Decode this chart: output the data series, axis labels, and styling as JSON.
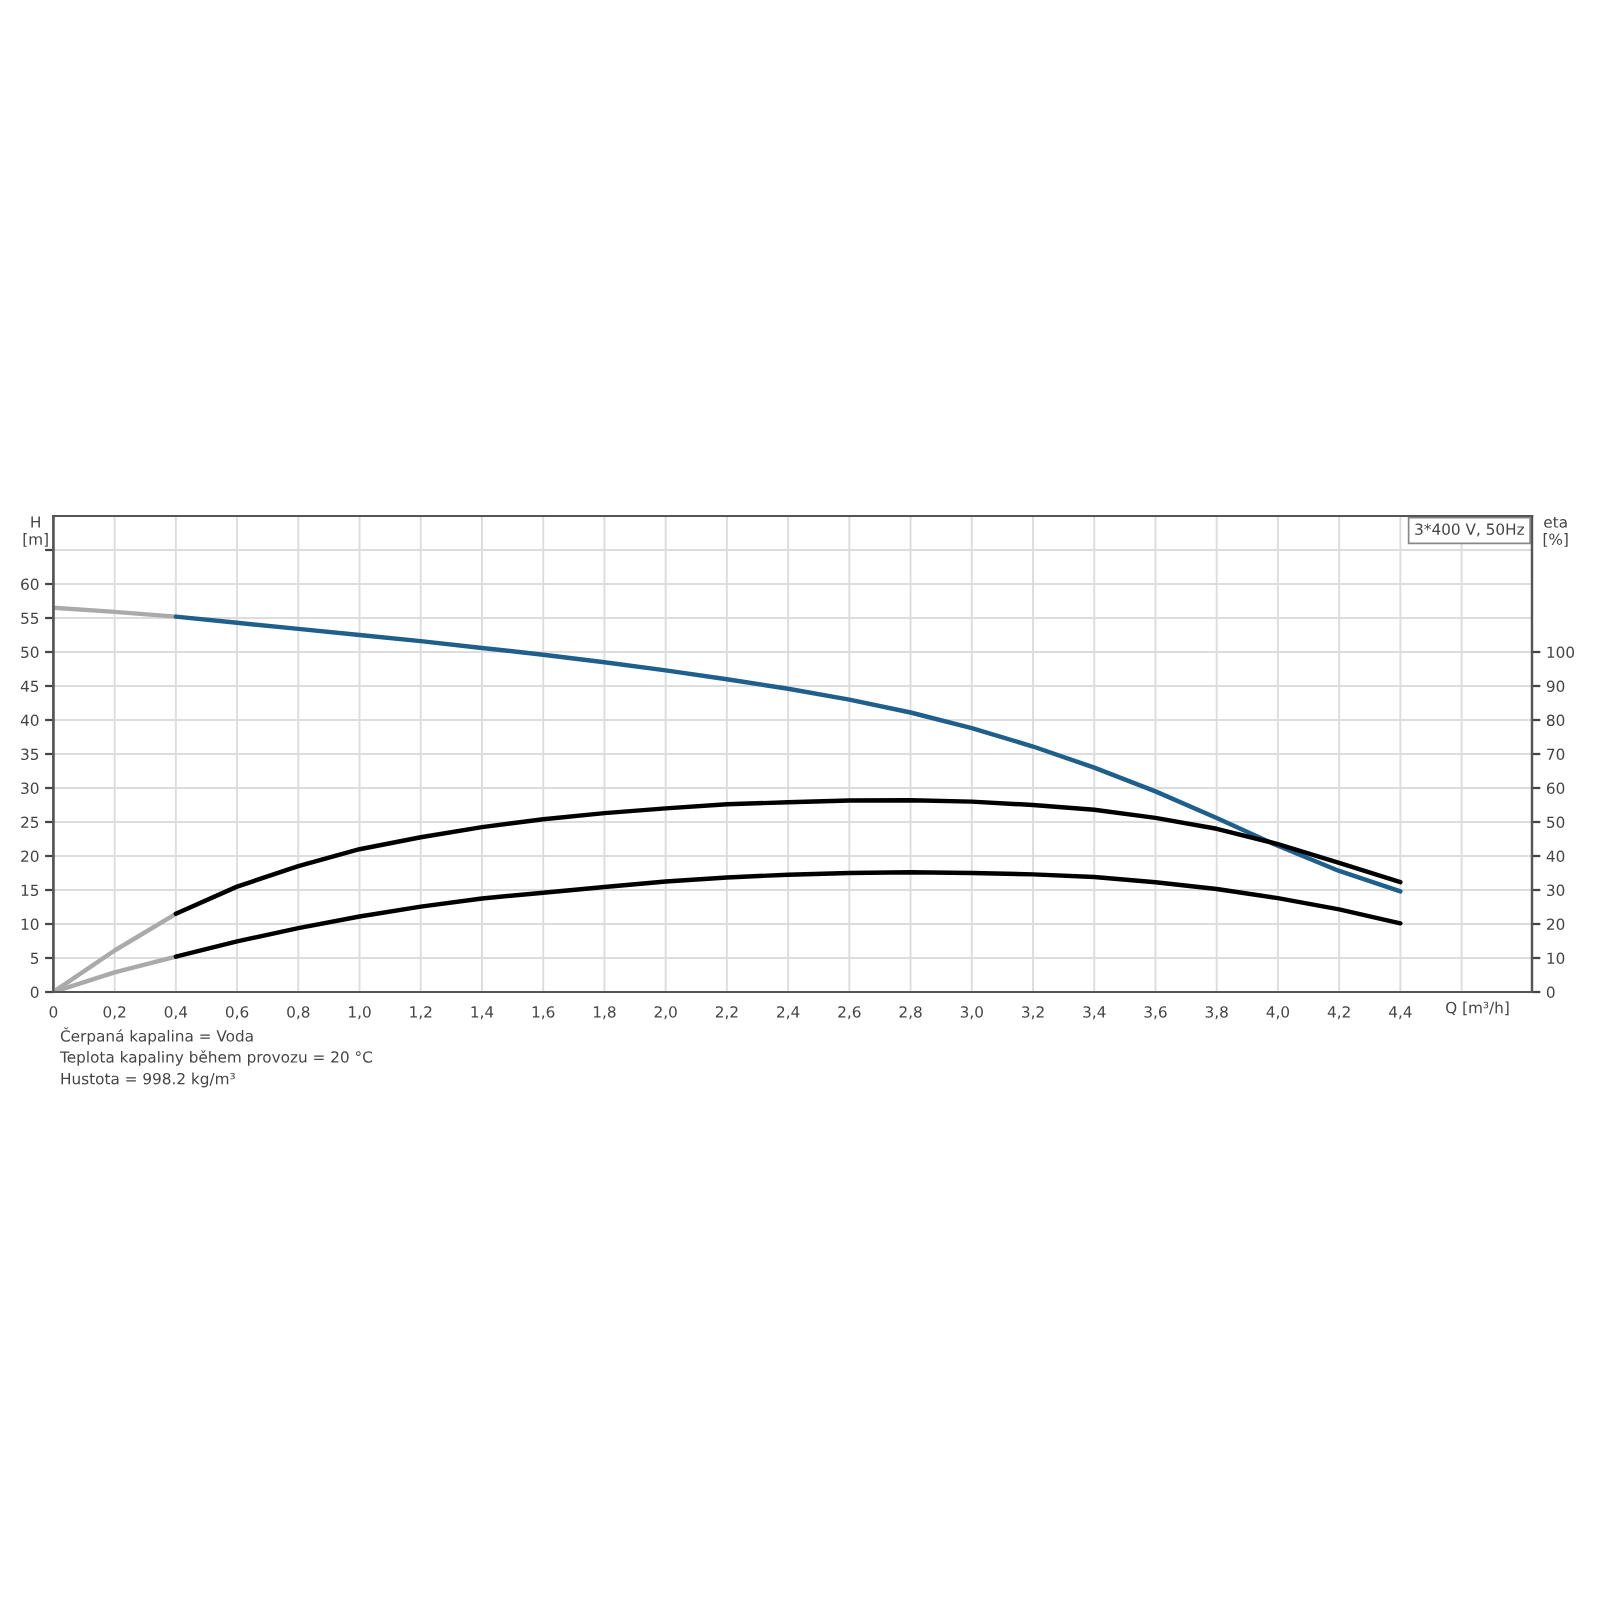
{
  "chart_data": {
    "type": "line",
    "ylabel": "H\n[m]",
    "y2label": "eta\n[%]",
    "xlabel": "Q [m³/h]",
    "xlim": [
      0,
      4.83
    ],
    "xticks": [
      {
        "value": 0,
        "label": "0"
      },
      {
        "value": 0.2,
        "label": "0,2"
      },
      {
        "value": 0.4,
        "label": "0,4"
      },
      {
        "value": 0.6,
        "label": "0,6"
      },
      {
        "value": 0.8,
        "label": "0,8"
      },
      {
        "value": 1.0,
        "label": "1,0"
      },
      {
        "value": 1.2,
        "label": "1,2"
      },
      {
        "value": 1.4,
        "label": "1,4"
      },
      {
        "value": 1.6,
        "label": "1,6"
      },
      {
        "value": 1.8,
        "label": "1,8"
      },
      {
        "value": 2.0,
        "label": "2,0"
      },
      {
        "value": 2.2,
        "label": "2,2"
      },
      {
        "value": 2.4,
        "label": "2,4"
      },
      {
        "value": 2.6,
        "label": "2,6"
      },
      {
        "value": 2.8,
        "label": "2,8"
      },
      {
        "value": 3.0,
        "label": "3,0"
      },
      {
        "value": 3.2,
        "label": "3,2"
      },
      {
        "value": 3.4,
        "label": "3,4"
      },
      {
        "value": 3.6,
        "label": "3,6"
      },
      {
        "value": 3.8,
        "label": "3,8"
      },
      {
        "value": 4.0,
        "label": "4,0"
      },
      {
        "value": 4.2,
        "label": "4,2"
      },
      {
        "value": 4.4,
        "label": "4,4"
      },
      {
        "value": 4.6,
        "label": null
      }
    ],
    "ylim": [
      0,
      70
    ],
    "yticks": [
      0,
      5,
      10,
      15,
      20,
      25,
      30,
      35,
      40,
      45,
      50,
      55,
      60,
      {
        "value": 65,
        "label": null
      }
    ],
    "y2lim": [
      0,
      140
    ],
    "y2ticks": [
      0,
      10,
      20,
      30,
      40,
      50,
      60,
      70,
      80,
      90,
      100
    ],
    "grid": true,
    "marker": "none",
    "line_style": "solid",
    "legend": false,
    "series": [
      {
        "color": "#aaaaaa",
        "x": [
          0,
          0.2,
          0.4
        ],
        "values": [
          56.5,
          55.9,
          55.2
        ]
      },
      {
        "color": "#1f5f8b",
        "x": [
          0.4,
          0.6,
          0.8,
          1.0,
          1.2,
          1.4,
          1.6,
          1.8,
          2.0,
          2.2,
          2.4,
          2.6,
          2.8,
          3.0,
          3.2,
          3.4,
          3.6,
          3.8,
          4.0,
          4.2,
          4.4
        ],
        "values": [
          55.2,
          54.3,
          53.4,
          52.5,
          51.6,
          50.6,
          49.6,
          48.5,
          47.3,
          46.0,
          44.6,
          43.0,
          41.1,
          38.8,
          36.1,
          33.0,
          29.5,
          25.6,
          21.5,
          17.8,
          14.8
        ]
      },
      {
        "color": "#aaaaaa",
        "axis": "y2",
        "x": [
          0,
          0.2,
          0.4
        ],
        "values": [
          0,
          12.2,
          23
        ]
      },
      {
        "color": "#000000",
        "axis": "y2",
        "x": [
          0.4,
          0.6,
          0.8,
          1.0,
          1.2,
          1.4,
          1.6,
          1.8,
          2.0,
          2.2,
          2.4,
          2.6,
          2.8,
          3.0,
          3.2,
          3.4,
          3.6,
          3.8,
          4.0,
          4.2,
          4.4
        ],
        "values": [
          23,
          31,
          37,
          42,
          45.5,
          48.5,
          50.8,
          52.6,
          54,
          55.2,
          55.8,
          56.3,
          56.4,
          56,
          55,
          53.6,
          51.2,
          48,
          43.5,
          38,
          32.3
        ]
      },
      {
        "color": "#aaaaaa",
        "axis": "y2",
        "x": [
          0,
          0.2,
          0.4
        ],
        "values": [
          0,
          5.8,
          10.4
        ]
      },
      {
        "color": "#000000",
        "axis": "y2",
        "x": [
          0.4,
          0.6,
          0.8,
          1.0,
          1.2,
          1.4,
          1.6,
          1.8,
          2.0,
          2.2,
          2.4,
          2.6,
          2.8,
          3.0,
          3.2,
          3.4,
          3.6,
          3.8,
          4.0,
          4.2,
          4.4
        ],
        "values": [
          10.4,
          14.9,
          18.8,
          22.2,
          25.1,
          27.5,
          29.2,
          30.9,
          32.5,
          33.7,
          34.5,
          35.0,
          35.2,
          35.0,
          34.6,
          33.8,
          32.3,
          30.3,
          27.6,
          24.3,
          20.2
        ]
      }
    ],
    "annotations": [
      "3*400 V, 50Hz",
      "Čerpaná kapalina = Voda",
      "Teplota kapaliny během provozu = 20 °C",
      "Hustota = 998.2 kg/m³"
    ]
  }
}
